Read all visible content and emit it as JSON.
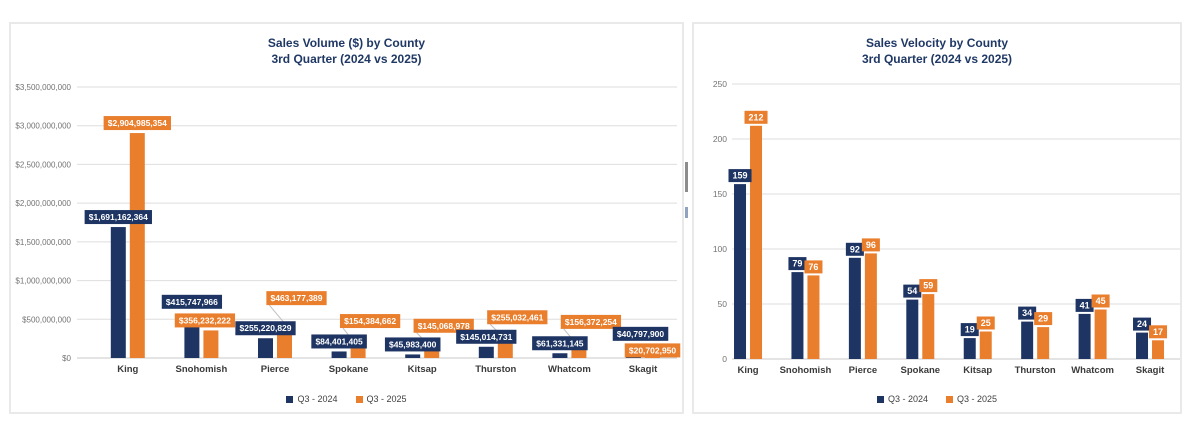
{
  "colors": {
    "navy": "#1E3564",
    "orange": "#E97E2D",
    "grid": "#DEDEDE",
    "axis_line": "#C9C9C9",
    "axis_text": "#737373",
    "category_text": "#3A3A3A",
    "title_text": "#1F3864",
    "label_text": "#FFFFFF",
    "leader": "#BFBFBF"
  },
  "chart_data": [
    {
      "type": "bar",
      "title": "Sales Volume ($) by County",
      "subtitle": "3rd Quarter (2024 vs 2025)",
      "categories": [
        "King",
        "Snohomish",
        "Pierce",
        "Spokane",
        "Kitsap",
        "Thurston",
        "Whatcom",
        "Skagit"
      ],
      "series": [
        {
          "name": "Q3 - 2024",
          "color_key": "navy",
          "values": [
            1691162364,
            415747966,
            255220829,
            84401405,
            45983400,
            145014731,
            61331145,
            40797900
          ]
        },
        {
          "name": "Q3 - 2025",
          "color_key": "orange",
          "values": [
            2904985354,
            356232222,
            463177389,
            154384662,
            145068978,
            255032461,
            156372254,
            20702950
          ]
        }
      ],
      "ylim": [
        0,
        3500000000
      ],
      "ytick_step": 500000000,
      "value_format": "currency",
      "grid": true,
      "legend_position": "bottom"
    },
    {
      "type": "bar",
      "title": "Sales Velocity by County",
      "subtitle": "3rd Quarter (2024 vs 2025)",
      "categories": [
        "King",
        "Snohomish",
        "Pierce",
        "Spokane",
        "Kitsap",
        "Thurston",
        "Whatcom",
        "Skagit"
      ],
      "series": [
        {
          "name": "Q3 - 2024",
          "color_key": "navy",
          "values": [
            159,
            79,
            92,
            54,
            19,
            34,
            41,
            24
          ]
        },
        {
          "name": "Q3 - 2025",
          "color_key": "orange",
          "values": [
            212,
            76,
            96,
            59,
            25,
            29,
            45,
            17
          ]
        }
      ],
      "ylim": [
        0,
        250
      ],
      "ytick_step": 50,
      "value_format": "number",
      "grid": true,
      "legend_position": "bottom"
    }
  ]
}
